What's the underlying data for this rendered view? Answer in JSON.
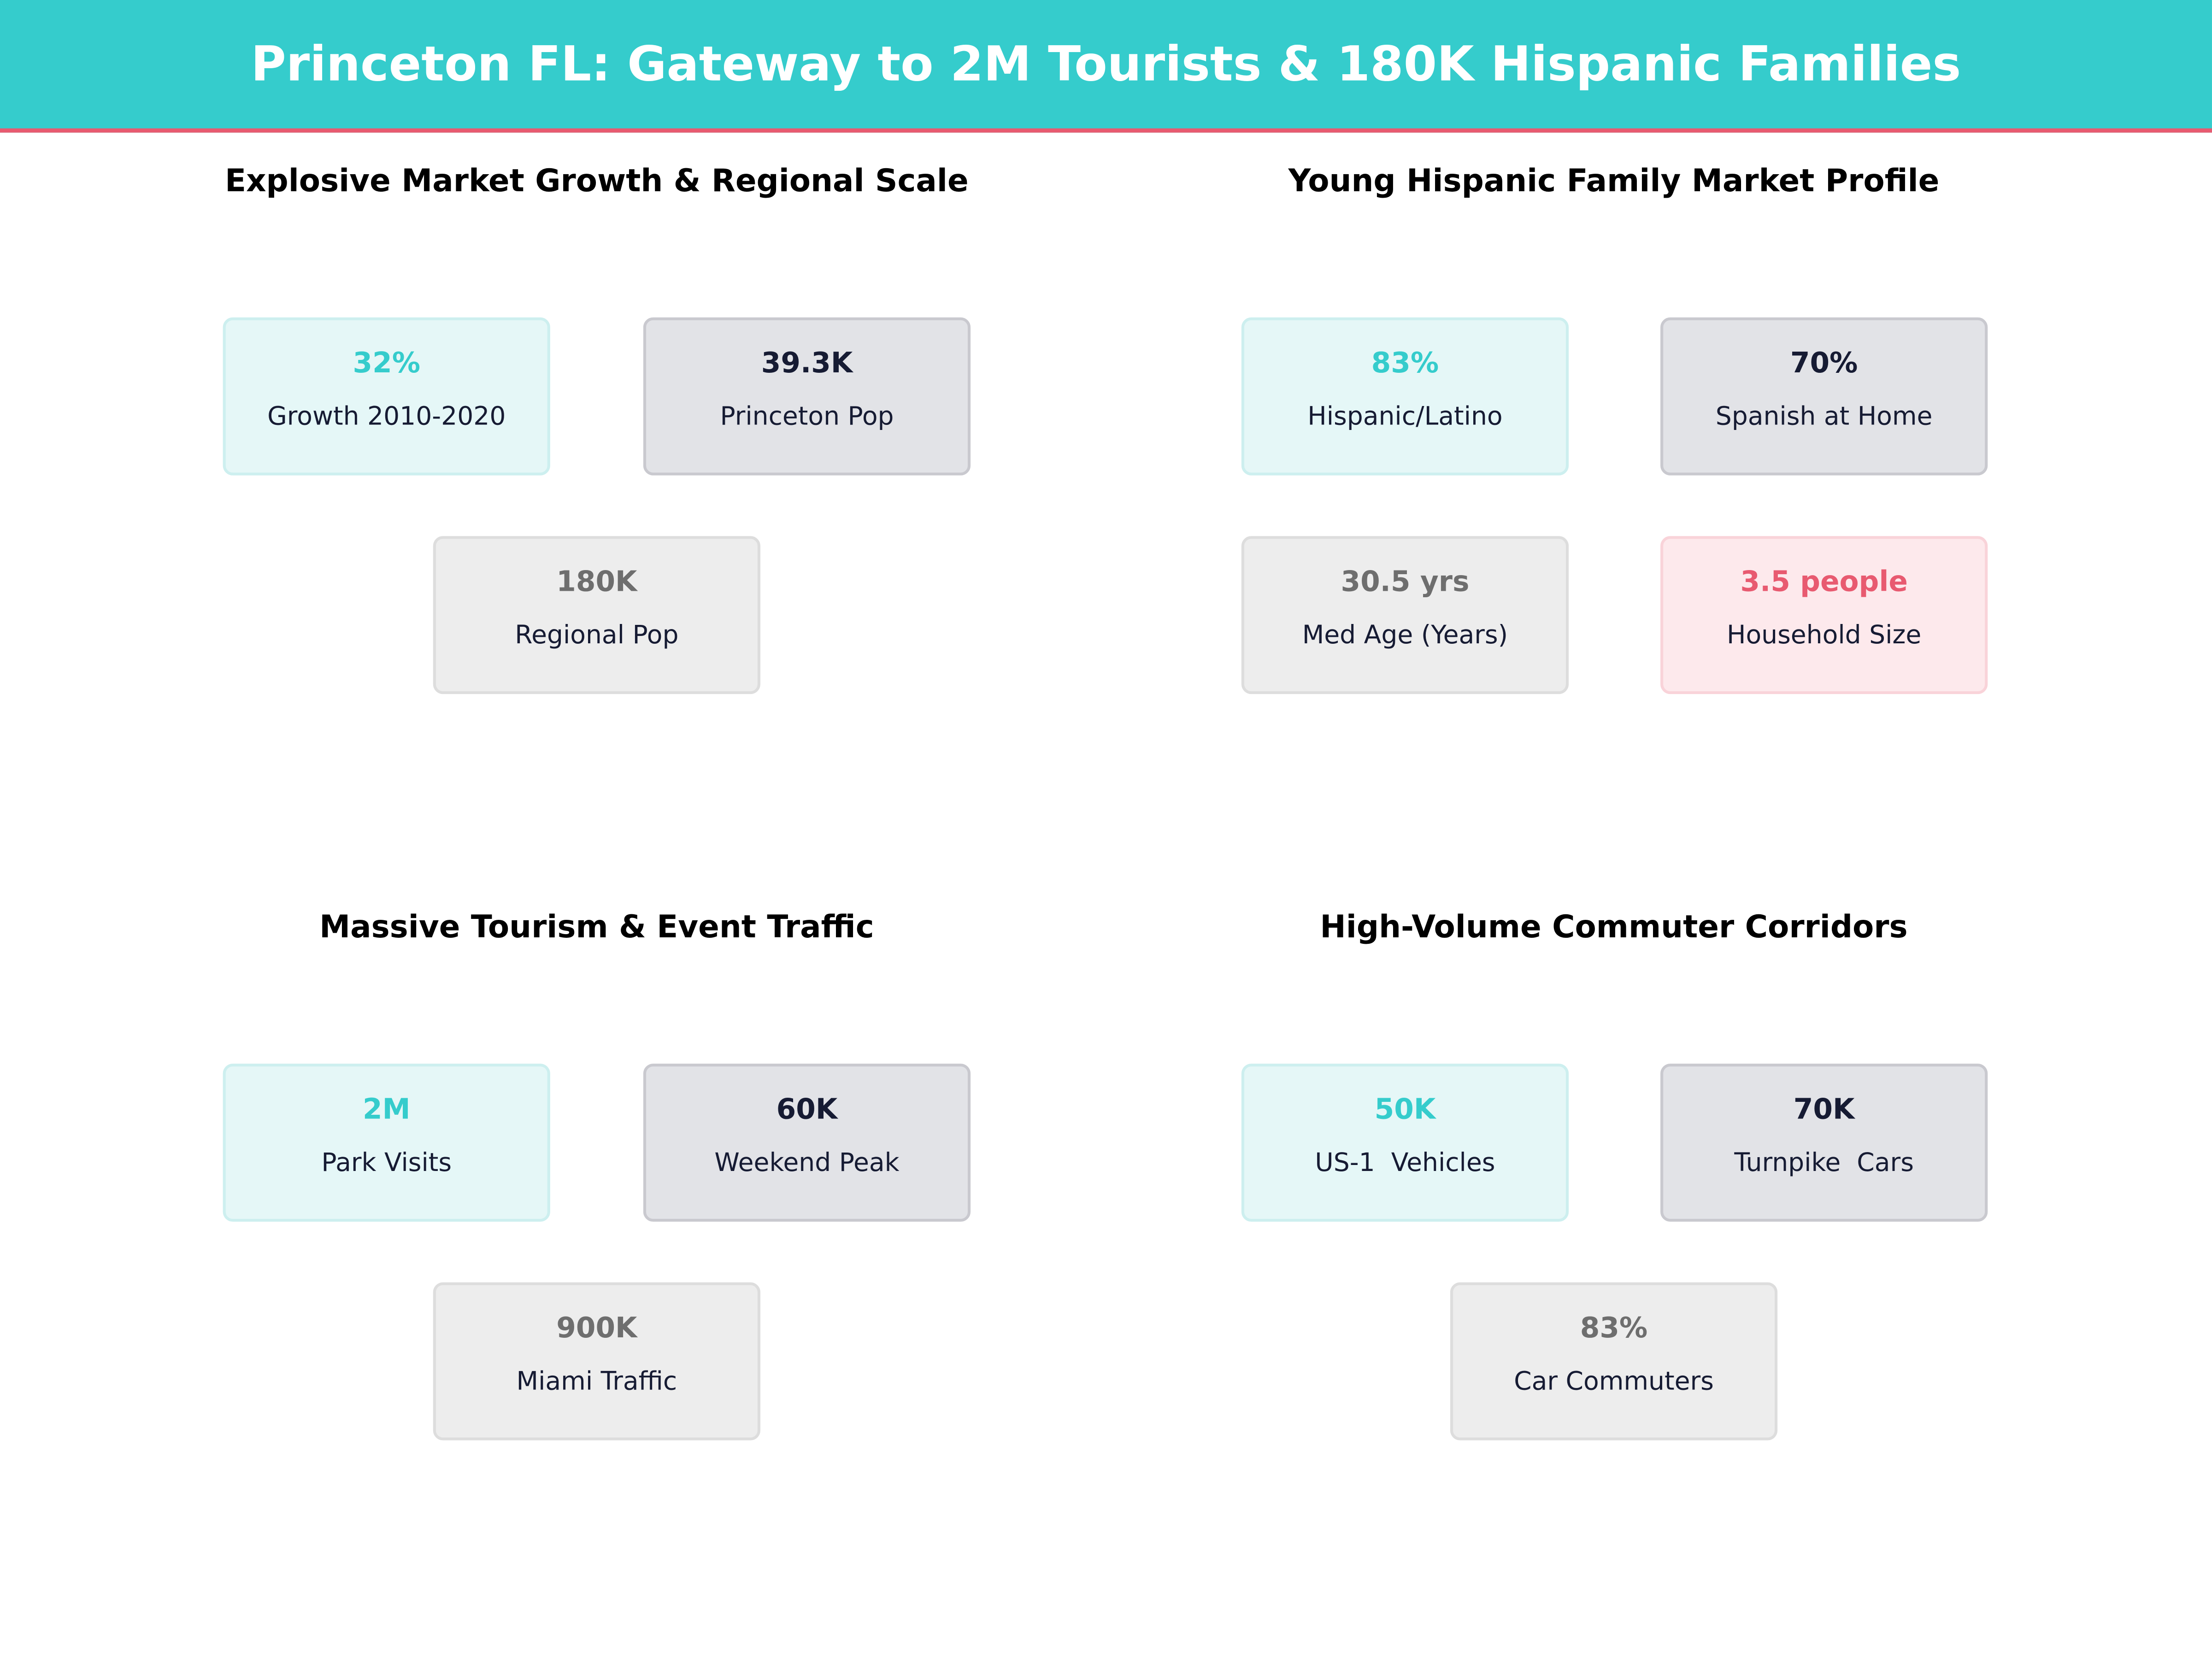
{
  "header": {
    "title": "Princeton FL: Gateway to 2M Tourists & 180K Hispanic Families"
  },
  "colors": {
    "teal": "#35CCCC",
    "accent_red": "#E85A70",
    "dark": "#161B33",
    "gray": "#6E6E6E"
  },
  "sections": [
    {
      "title": "Explosive Market Growth & Regional Scale",
      "cards": [
        {
          "value": "32%",
          "label": "Growth 2010-2020",
          "style": "teal"
        },
        {
          "value": "39.3K",
          "label": "Princeton Pop",
          "style": "dark"
        },
        {
          "value": "180K",
          "label": "Regional Pop",
          "style": "gray"
        }
      ]
    },
    {
      "title": "Young Hispanic Family Market Profile",
      "cards": [
        {
          "value": "83%",
          "label": "Hispanic/Latino",
          "style": "teal"
        },
        {
          "value": "70%",
          "label": "Spanish at Home",
          "style": "dark"
        },
        {
          "value": "30.5 yrs",
          "label": "Med Age (Years)",
          "style": "gray"
        },
        {
          "value": "3.5 people",
          "label": "Household Size",
          "style": "pink"
        }
      ]
    },
    {
      "title": "Massive Tourism & Event Traffic",
      "cards": [
        {
          "value": "2M",
          "label": "Park Visits",
          "style": "teal"
        },
        {
          "value": "60K",
          "label": "Weekend Peak",
          "style": "dark"
        },
        {
          "value": "900K",
          "label": "Miami Traffic",
          "style": "gray"
        }
      ]
    },
    {
      "title": "High-Volume Commuter Corridors",
      "cards": [
        {
          "value": "50K",
          "label": "US-1  Vehicles",
          "style": "teal"
        },
        {
          "value": "70K",
          "label": "Turnpike  Cars",
          "style": "dark"
        },
        {
          "value": "83%",
          "label": "Car Commuters",
          "style": "gray"
        }
      ]
    }
  ]
}
